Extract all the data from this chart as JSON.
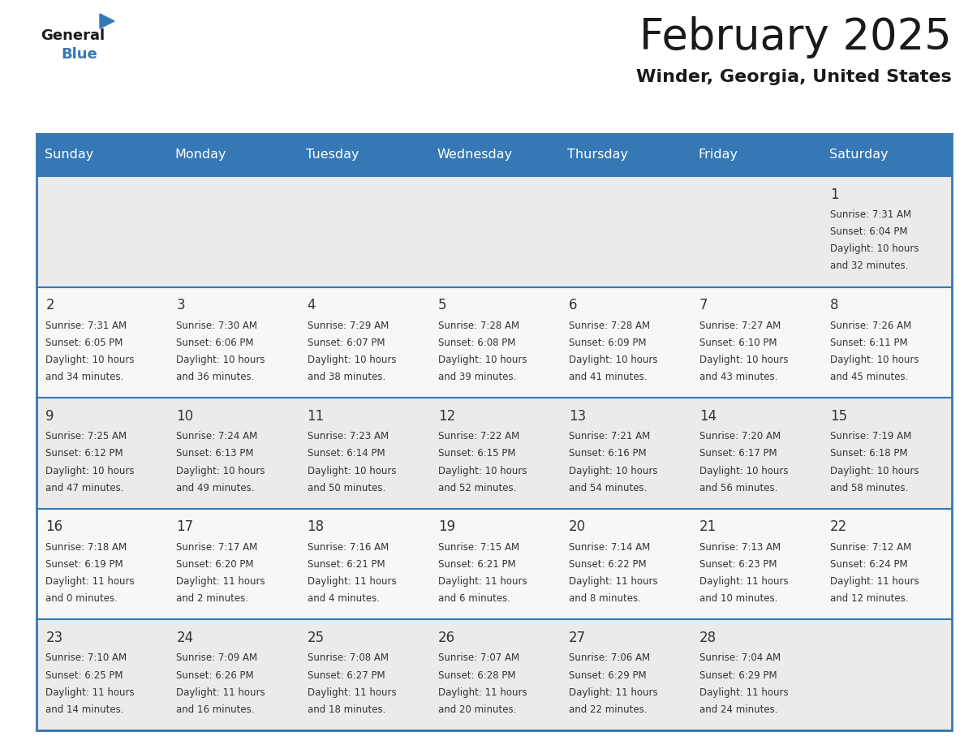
{
  "title": "February 2025",
  "subtitle": "Winder, Georgia, United States",
  "header_bg_color": "#3578b5",
  "header_text_color": "#ffffff",
  "day_headers": [
    "Sunday",
    "Monday",
    "Tuesday",
    "Wednesday",
    "Thursday",
    "Friday",
    "Saturday"
  ],
  "title_color": "#1a1a1a",
  "subtitle_color": "#1a1a1a",
  "day_number_color": "#333333",
  "cell_text_color": "#333333",
  "separator_color": "#3578b5",
  "row_bg_odd": "#ebebeb",
  "row_bg_even": "#f7f7f7",
  "days": [
    {
      "day": 1,
      "col": 6,
      "row": 0,
      "sunrise": "7:31 AM",
      "sunset": "6:04 PM",
      "daylight_hours": 10,
      "daylight_minutes": 32
    },
    {
      "day": 2,
      "col": 0,
      "row": 1,
      "sunrise": "7:31 AM",
      "sunset": "6:05 PM",
      "daylight_hours": 10,
      "daylight_minutes": 34
    },
    {
      "day": 3,
      "col": 1,
      "row": 1,
      "sunrise": "7:30 AM",
      "sunset": "6:06 PM",
      "daylight_hours": 10,
      "daylight_minutes": 36
    },
    {
      "day": 4,
      "col": 2,
      "row": 1,
      "sunrise": "7:29 AM",
      "sunset": "6:07 PM",
      "daylight_hours": 10,
      "daylight_minutes": 38
    },
    {
      "day": 5,
      "col": 3,
      "row": 1,
      "sunrise": "7:28 AM",
      "sunset": "6:08 PM",
      "daylight_hours": 10,
      "daylight_minutes": 39
    },
    {
      "day": 6,
      "col": 4,
      "row": 1,
      "sunrise": "7:28 AM",
      "sunset": "6:09 PM",
      "daylight_hours": 10,
      "daylight_minutes": 41
    },
    {
      "day": 7,
      "col": 5,
      "row": 1,
      "sunrise": "7:27 AM",
      "sunset": "6:10 PM",
      "daylight_hours": 10,
      "daylight_minutes": 43
    },
    {
      "day": 8,
      "col": 6,
      "row": 1,
      "sunrise": "7:26 AM",
      "sunset": "6:11 PM",
      "daylight_hours": 10,
      "daylight_minutes": 45
    },
    {
      "day": 9,
      "col": 0,
      "row": 2,
      "sunrise": "7:25 AM",
      "sunset": "6:12 PM",
      "daylight_hours": 10,
      "daylight_minutes": 47
    },
    {
      "day": 10,
      "col": 1,
      "row": 2,
      "sunrise": "7:24 AM",
      "sunset": "6:13 PM",
      "daylight_hours": 10,
      "daylight_minutes": 49
    },
    {
      "day": 11,
      "col": 2,
      "row": 2,
      "sunrise": "7:23 AM",
      "sunset": "6:14 PM",
      "daylight_hours": 10,
      "daylight_minutes": 50
    },
    {
      "day": 12,
      "col": 3,
      "row": 2,
      "sunrise": "7:22 AM",
      "sunset": "6:15 PM",
      "daylight_hours": 10,
      "daylight_minutes": 52
    },
    {
      "day": 13,
      "col": 4,
      "row": 2,
      "sunrise": "7:21 AM",
      "sunset": "6:16 PM",
      "daylight_hours": 10,
      "daylight_minutes": 54
    },
    {
      "day": 14,
      "col": 5,
      "row": 2,
      "sunrise": "7:20 AM",
      "sunset": "6:17 PM",
      "daylight_hours": 10,
      "daylight_minutes": 56
    },
    {
      "day": 15,
      "col": 6,
      "row": 2,
      "sunrise": "7:19 AM",
      "sunset": "6:18 PM",
      "daylight_hours": 10,
      "daylight_minutes": 58
    },
    {
      "day": 16,
      "col": 0,
      "row": 3,
      "sunrise": "7:18 AM",
      "sunset": "6:19 PM",
      "daylight_hours": 11,
      "daylight_minutes": 0
    },
    {
      "day": 17,
      "col": 1,
      "row": 3,
      "sunrise": "7:17 AM",
      "sunset": "6:20 PM",
      "daylight_hours": 11,
      "daylight_minutes": 2
    },
    {
      "day": 18,
      "col": 2,
      "row": 3,
      "sunrise": "7:16 AM",
      "sunset": "6:21 PM",
      "daylight_hours": 11,
      "daylight_minutes": 4
    },
    {
      "day": 19,
      "col": 3,
      "row": 3,
      "sunrise": "7:15 AM",
      "sunset": "6:21 PM",
      "daylight_hours": 11,
      "daylight_minutes": 6
    },
    {
      "day": 20,
      "col": 4,
      "row": 3,
      "sunrise": "7:14 AM",
      "sunset": "6:22 PM",
      "daylight_hours": 11,
      "daylight_minutes": 8
    },
    {
      "day": 21,
      "col": 5,
      "row": 3,
      "sunrise": "7:13 AM",
      "sunset": "6:23 PM",
      "daylight_hours": 11,
      "daylight_minutes": 10
    },
    {
      "day": 22,
      "col": 6,
      "row": 3,
      "sunrise": "7:12 AM",
      "sunset": "6:24 PM",
      "daylight_hours": 11,
      "daylight_minutes": 12
    },
    {
      "day": 23,
      "col": 0,
      "row": 4,
      "sunrise": "7:10 AM",
      "sunset": "6:25 PM",
      "daylight_hours": 11,
      "daylight_minutes": 14
    },
    {
      "day": 24,
      "col": 1,
      "row": 4,
      "sunrise": "7:09 AM",
      "sunset": "6:26 PM",
      "daylight_hours": 11,
      "daylight_minutes": 16
    },
    {
      "day": 25,
      "col": 2,
      "row": 4,
      "sunrise": "7:08 AM",
      "sunset": "6:27 PM",
      "daylight_hours": 11,
      "daylight_minutes": 18
    },
    {
      "day": 26,
      "col": 3,
      "row": 4,
      "sunrise": "7:07 AM",
      "sunset": "6:28 PM",
      "daylight_hours": 11,
      "daylight_minutes": 20
    },
    {
      "day": 27,
      "col": 4,
      "row": 4,
      "sunrise": "7:06 AM",
      "sunset": "6:29 PM",
      "daylight_hours": 11,
      "daylight_minutes": 22
    },
    {
      "day": 28,
      "col": 5,
      "row": 4,
      "sunrise": "7:04 AM",
      "sunset": "6:29 PM",
      "daylight_hours": 11,
      "daylight_minutes": 24
    }
  ]
}
